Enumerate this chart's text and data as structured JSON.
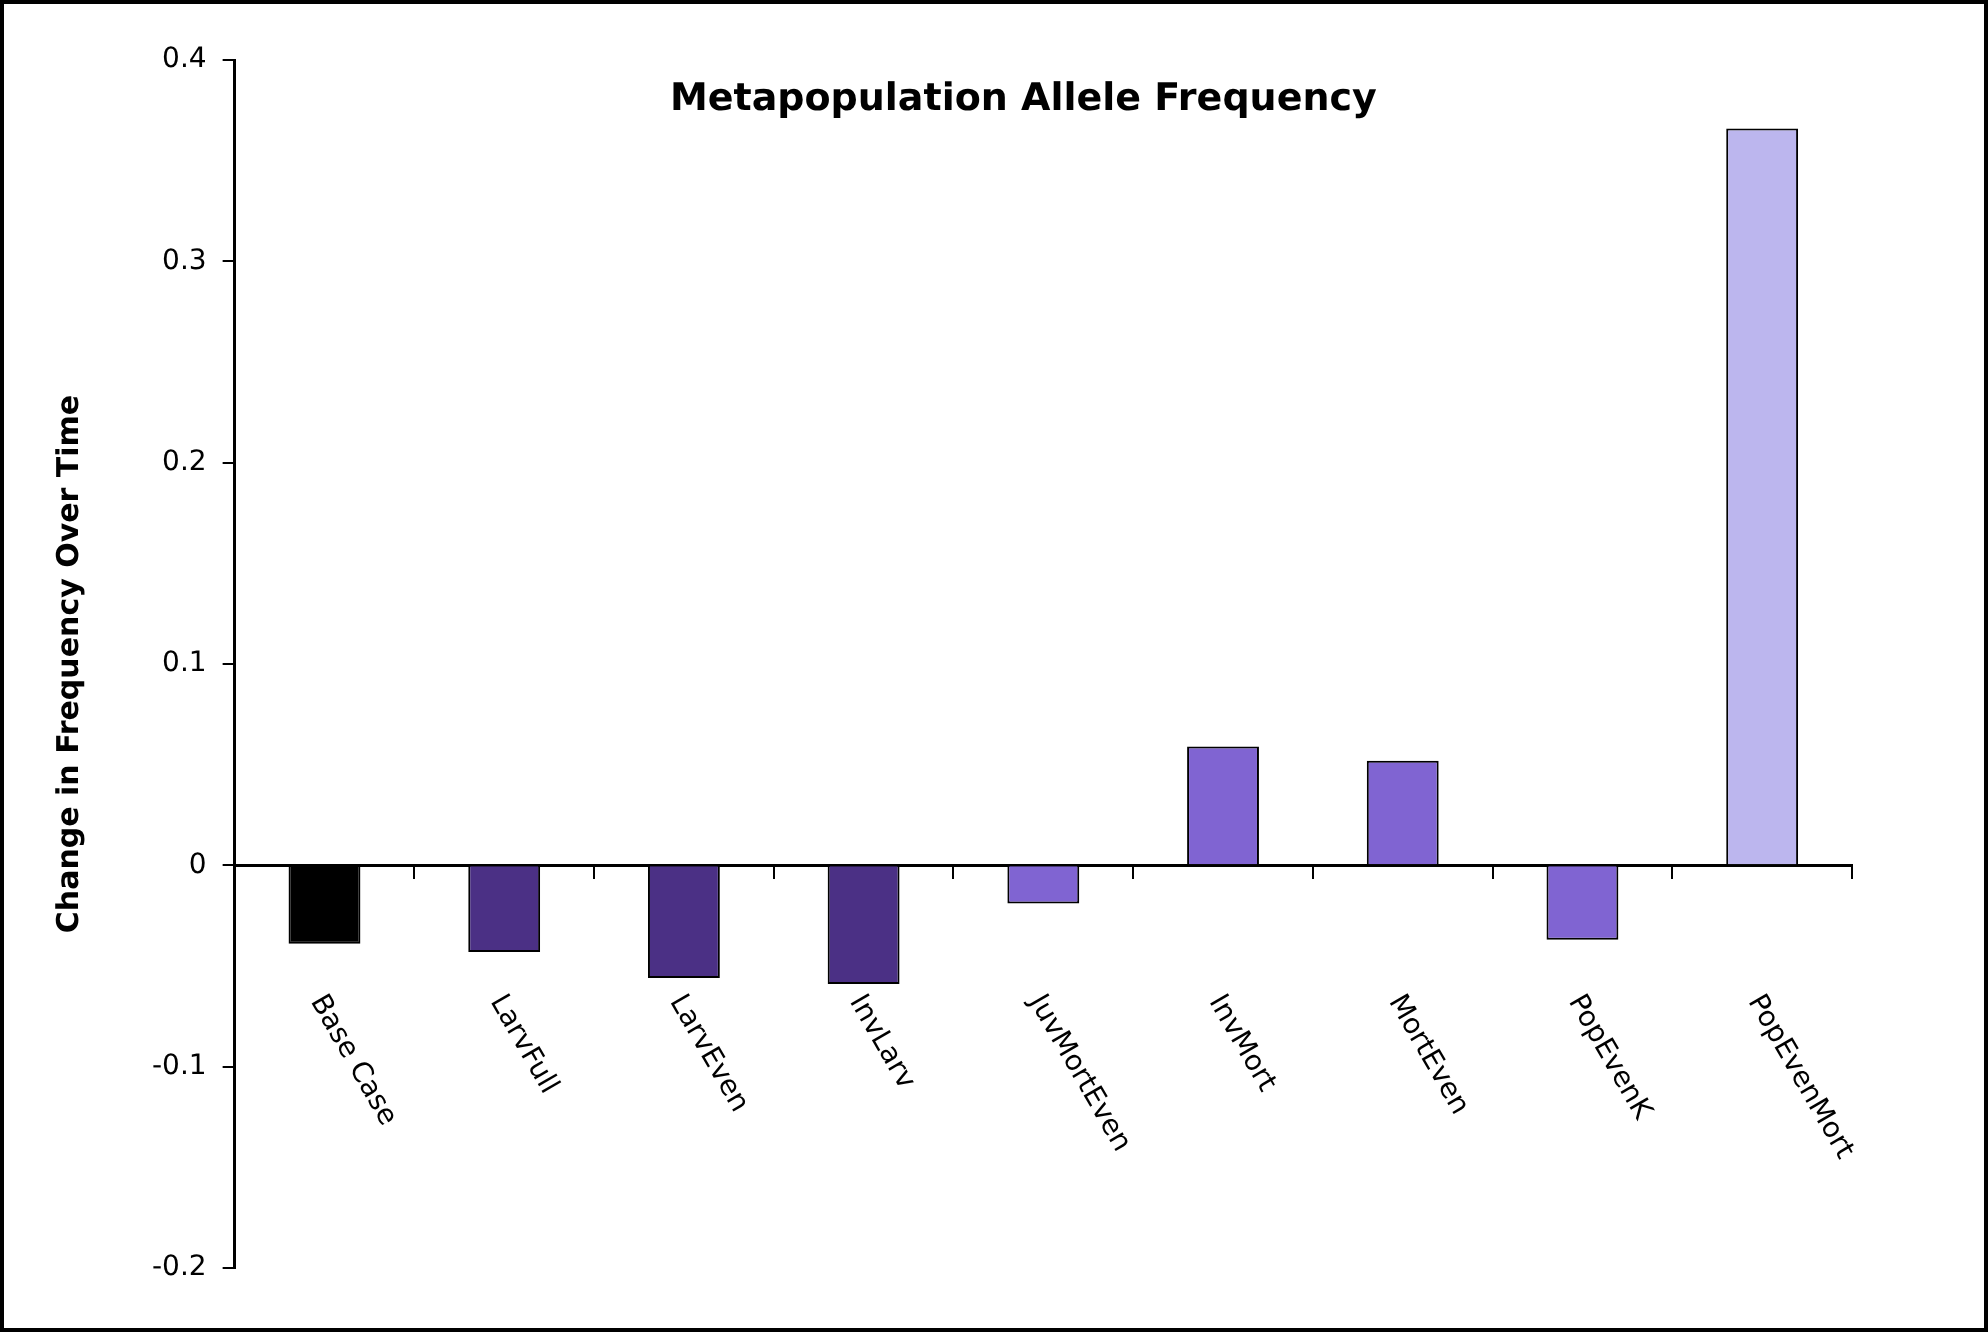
{
  "chart_data": {
    "type": "bar",
    "title": "Metapopulation Allele Frequency",
    "ylabel": "Change in Frequency Over Time",
    "categories": [
      "Base Case",
      "LarvFull",
      "LarvEven",
      "InvLarv",
      "JuvMortEven",
      "InvMort",
      "MortEven",
      "PopEvenK",
      "PopEvenMort"
    ],
    "values": [
      -0.039,
      -0.043,
      -0.056,
      -0.059,
      -0.019,
      0.059,
      0.052,
      -0.037,
      0.366
    ],
    "colors": [
      "#000000",
      "#4b3085",
      "#4b3085",
      "#4b3085",
      "#8064d2",
      "#8064d2",
      "#8064d2",
      "#8064d2",
      "#bcb6ee"
    ],
    "ylim": [
      -0.2,
      0.4
    ],
    "yticks": [
      -0.2,
      -0.1,
      0,
      0.1,
      0.2,
      0.3,
      0.4
    ],
    "legend": false
  }
}
